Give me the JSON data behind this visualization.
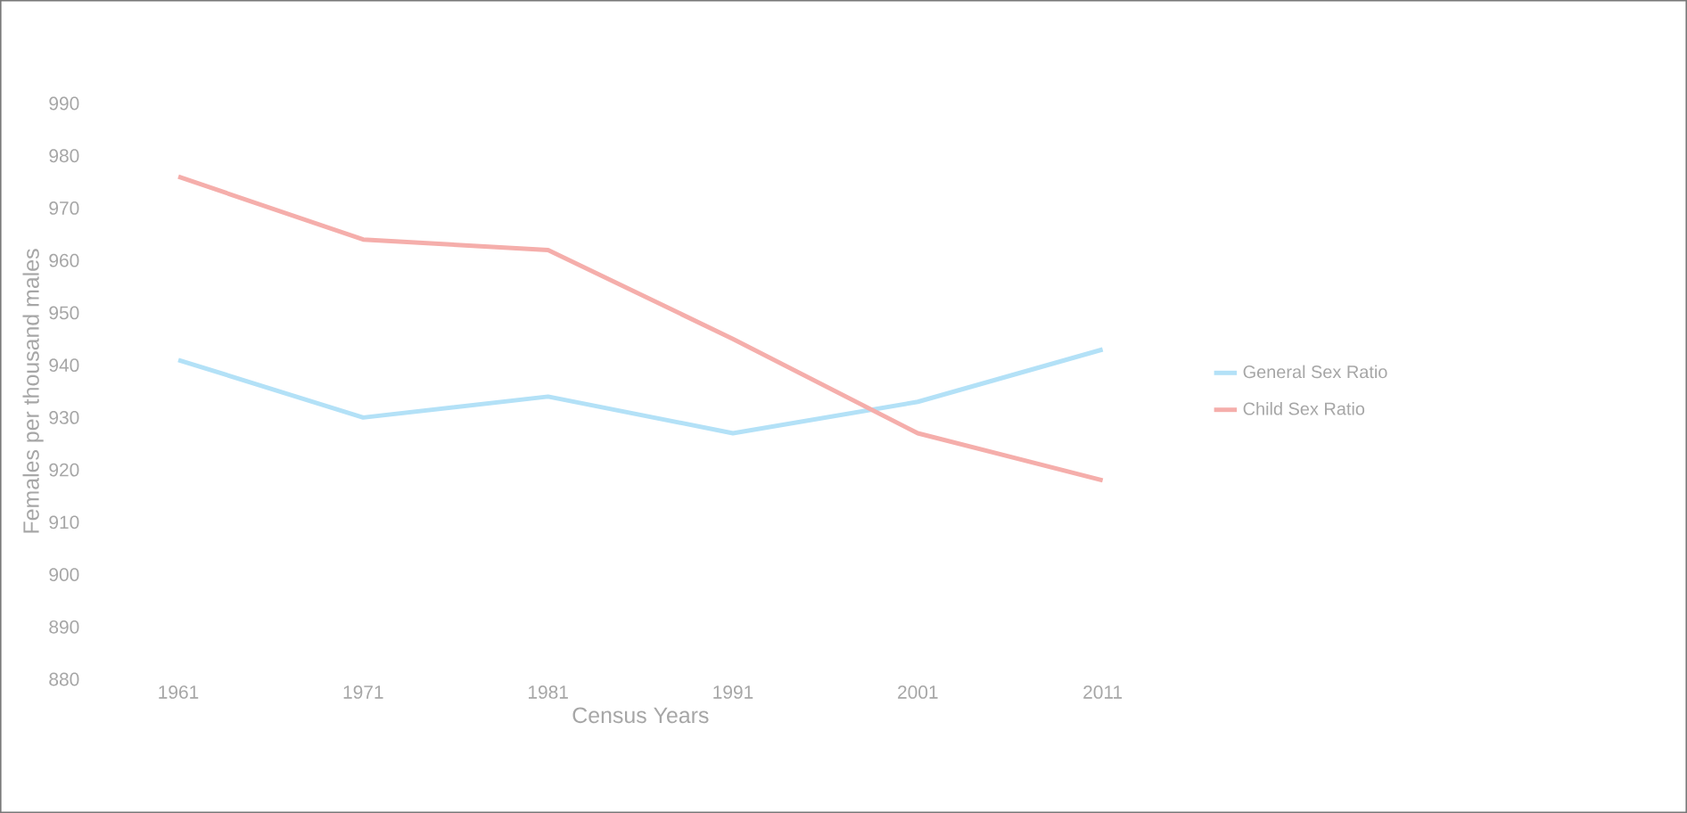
{
  "chart_data": {
    "type": "line",
    "xlabel": "Census Years",
    "ylabel": "Females per thousand males",
    "categories": [
      "1961",
      "1971",
      "1981",
      "1991",
      "2001",
      "2011"
    ],
    "series": [
      {
        "name": "General Sex Ratio",
        "color": "#b3e1f7",
        "values": [
          941,
          930,
          934,
          927,
          933,
          943
        ]
      },
      {
        "name": "Child Sex Ratio",
        "color": "#f5aeab",
        "values": [
          976,
          964,
          962,
          945,
          927,
          918
        ]
      }
    ],
    "ylim": [
      880,
      990
    ],
    "yticks": [
      880,
      890,
      900,
      910,
      920,
      930,
      940,
      950,
      960,
      970,
      980,
      990
    ],
    "grid": false,
    "legend": "right",
    "marker": "none",
    "line_style": "solid"
  }
}
